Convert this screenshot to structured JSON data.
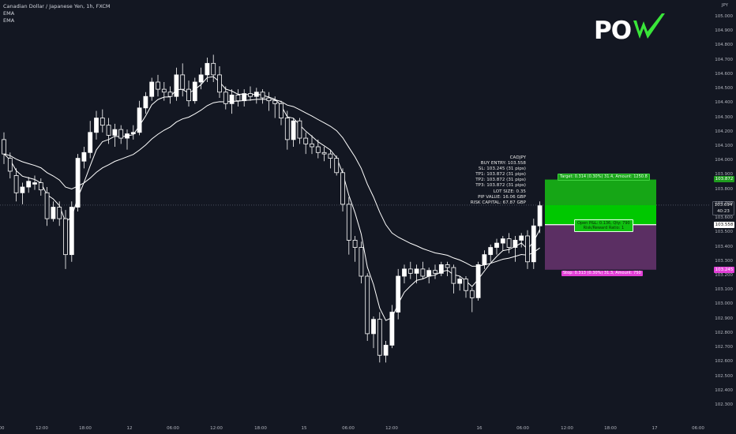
{
  "legend": {
    "symbol": "Canadian Dollar / Japanese Yen, 1h, FXCM",
    "ema1": "EMA",
    "ema2": "EMA"
  },
  "logo": {
    "text": "POW",
    "brand_color": "#39e639"
  },
  "currency": "JPY",
  "info_box": {
    "lines": [
      "CADJPY",
      "BUY ENTRY: 103.558",
      "SL: 103.245 (31 pips)",
      "TP1: 103.872 (31 pips)",
      "TP2: 103.872 (31 pips)",
      "TP3: 103.872 (31 pips)",
      "LOT SIZE: 0.35",
      "PIP VALUE: 16.06 GBP",
      "RISK CAPITAL: 67.87 GBP"
    ]
  },
  "position": {
    "target_label": "Target: 0.314 (0.30%) 31.4, Amount: 1250.8",
    "stop_label": "Stop: 0.313 (0.30%) 31.3, Amount: 750",
    "pnl_line1": "Open P&L: 0.136, Qty: 790",
    "pnl_line2": "Risk/Reward Ratio: 1",
    "target_price": "103.872",
    "current_price": "103.694",
    "current_countdown": "40:23",
    "entry_price": "103.558",
    "stop_price": "103.245",
    "target_value": 103.872,
    "current_value": 103.694,
    "entry_value": 103.558,
    "stop_value": 103.245,
    "colors": {
      "profit": "#16a616",
      "profit_active": "#00c800",
      "loss": "#5b2f63",
      "stop_tag": "#e23fd6"
    }
  },
  "chart_data": {
    "type": "candlestick",
    "title": "Canadian Dollar / Japanese Yen, 1h, FXCM",
    "ylabel": "JPY",
    "ylim": [
      102.2,
      105.1
    ],
    "y_ticks": [
      "105.000",
      "104.900",
      "104.800",
      "104.700",
      "104.600",
      "104.500",
      "104.400",
      "104.300",
      "104.200",
      "104.100",
      "104.000",
      "103.900",
      "103.800",
      "103.700",
      "103.600",
      "103.500",
      "103.400",
      "103.300",
      "103.200",
      "103.100",
      "103.000",
      "102.900",
      "102.800",
      "102.700",
      "102.600",
      "102.500",
      "102.400",
      "102.300"
    ],
    "x_ticks": [
      "00",
      "12:00",
      "18:00",
      "12",
      "06:00",
      "12:00",
      "18:00",
      "15",
      "06:00",
      "12:00",
      "16",
      "06:00",
      "12:00",
      "18:00",
      "17",
      "06:00"
    ],
    "grid": false,
    "series": [
      {
        "kind": "ohlc",
        "ohlc": [
          [
            104.15,
            104.2,
            103.98,
            104.05
          ],
          [
            104.02,
            104.06,
            103.88,
            103.93
          ],
          [
            103.9,
            103.95,
            103.72,
            103.78
          ],
          [
            103.78,
            103.85,
            103.7,
            103.82
          ],
          [
            103.82,
            103.89,
            103.78,
            103.86
          ],
          [
            103.84,
            103.9,
            103.8,
            103.85
          ],
          [
            103.85,
            103.88,
            103.76,
            103.8
          ],
          [
            103.78,
            103.82,
            103.55,
            103.6
          ],
          [
            103.6,
            103.72,
            103.58,
            103.68
          ],
          [
            103.68,
            103.72,
            103.55,
            103.6
          ],
          [
            103.6,
            103.66,
            103.25,
            103.35
          ],
          [
            103.35,
            103.72,
            103.3,
            103.68
          ],
          [
            103.68,
            104.05,
            103.65,
            104.02
          ],
          [
            104.0,
            104.1,
            103.95,
            104.06
          ],
          [
            104.06,
            104.28,
            104.02,
            104.2
          ],
          [
            104.2,
            104.35,
            104.15,
            104.3
          ],
          [
            104.3,
            104.36,
            104.2,
            104.25
          ],
          [
            104.25,
            104.3,
            104.12,
            104.18
          ],
          [
            104.18,
            104.26,
            104.1,
            104.22
          ],
          [
            104.22,
            104.25,
            104.12,
            104.16
          ],
          [
            104.16,
            104.22,
            104.08,
            104.19
          ],
          [
            104.19,
            104.25,
            104.15,
            104.2
          ],
          [
            104.2,
            104.42,
            104.18,
            104.37
          ],
          [
            104.37,
            104.48,
            104.33,
            104.45
          ],
          [
            104.45,
            104.58,
            104.42,
            104.55
          ],
          [
            104.55,
            104.6,
            104.45,
            104.5
          ],
          [
            104.5,
            104.55,
            104.42,
            104.48
          ],
          [
            104.48,
            104.52,
            104.4,
            104.45
          ],
          [
            104.45,
            104.65,
            104.42,
            104.6
          ],
          [
            104.6,
            104.68,
            104.45,
            104.5
          ],
          [
            104.5,
            104.56,
            104.38,
            104.42
          ],
          [
            104.42,
            104.58,
            104.4,
            104.55
          ],
          [
            104.55,
            104.65,
            104.5,
            104.6
          ],
          [
            104.6,
            104.72,
            104.55,
            104.68
          ],
          [
            104.68,
            104.74,
            104.55,
            104.6
          ],
          [
            104.6,
            104.66,
            104.44,
            104.48
          ],
          [
            104.48,
            104.52,
            104.36,
            104.4
          ],
          [
            104.4,
            104.5,
            104.33,
            104.46
          ],
          [
            104.46,
            104.5,
            104.38,
            104.42
          ],
          [
            104.42,
            104.5,
            104.38,
            104.47
          ],
          [
            104.47,
            104.52,
            104.42,
            104.45
          ],
          [
            104.45,
            104.51,
            104.4,
            104.48
          ],
          [
            104.48,
            104.5,
            104.4,
            104.44
          ],
          [
            104.44,
            104.48,
            104.35,
            104.42
          ],
          [
            104.42,
            104.45,
            104.3,
            104.4
          ],
          [
            104.4,
            104.42,
            104.25,
            104.3
          ],
          [
            104.3,
            104.35,
            104.08,
            104.15
          ],
          [
            104.15,
            104.3,
            104.1,
            104.28
          ],
          [
            104.28,
            104.3,
            104.12,
            104.16
          ],
          [
            104.16,
            104.2,
            104.05,
            104.12
          ],
          [
            104.12,
            104.18,
            104.05,
            104.1
          ],
          [
            104.1,
            104.15,
            104.02,
            104.06
          ],
          [
            104.06,
            104.1,
            104.0,
            104.05
          ],
          [
            104.05,
            104.08,
            103.95,
            104.02
          ],
          [
            104.02,
            104.04,
            103.9,
            103.92
          ],
          [
            103.92,
            103.95,
            103.65,
            103.7
          ],
          [
            103.7,
            103.75,
            103.35,
            103.45
          ],
          [
            103.45,
            103.48,
            103.3,
            103.4
          ],
          [
            103.4,
            103.44,
            103.15,
            103.2
          ],
          [
            103.2,
            103.22,
            102.75,
            102.8
          ],
          [
            102.8,
            102.92,
            102.7,
            102.9
          ],
          [
            102.9,
            102.95,
            102.6,
            102.65
          ],
          [
            102.65,
            102.75,
            102.6,
            102.72
          ],
          [
            102.72,
            103.0,
            102.7,
            102.95
          ],
          [
            102.95,
            103.25,
            102.9,
            103.2
          ],
          [
            103.2,
            103.28,
            103.15,
            103.25
          ],
          [
            103.25,
            103.3,
            103.18,
            103.22
          ],
          [
            103.22,
            103.28,
            103.15,
            103.25
          ],
          [
            103.25,
            103.3,
            103.18,
            103.2
          ],
          [
            103.2,
            103.26,
            103.15,
            103.24
          ],
          [
            103.24,
            103.28,
            103.18,
            103.22
          ],
          [
            103.22,
            103.3,
            103.2,
            103.28
          ],
          [
            103.28,
            103.3,
            103.2,
            103.26
          ],
          [
            103.26,
            103.28,
            103.08,
            103.15
          ],
          [
            103.15,
            103.2,
            103.1,
            103.18
          ],
          [
            103.18,
            103.2,
            103.05,
            103.1
          ],
          [
            103.1,
            103.12,
            102.95,
            103.05
          ],
          [
            103.05,
            103.3,
            103.03,
            103.28
          ],
          [
            103.28,
            103.38,
            103.25,
            103.35
          ],
          [
            103.35,
            103.42,
            103.3,
            103.4
          ],
          [
            103.4,
            103.46,
            103.35,
            103.43
          ],
          [
            103.43,
            103.48,
            103.38,
            103.46
          ],
          [
            103.46,
            103.5,
            103.36,
            103.4
          ],
          [
            103.4,
            103.48,
            103.3,
            103.45
          ],
          [
            103.45,
            103.5,
            103.4,
            103.48
          ],
          [
            103.48,
            103.52,
            103.25,
            103.3
          ],
          [
            103.3,
            103.6,
            103.25,
            103.55
          ],
          [
            103.55,
            103.72,
            103.5,
            103.69
          ]
        ]
      },
      {
        "name": "EMA",
        "kind": "line",
        "color": "#ffffff"
      },
      {
        "name": "EMA",
        "kind": "line",
        "color": "#ffffff"
      }
    ]
  }
}
